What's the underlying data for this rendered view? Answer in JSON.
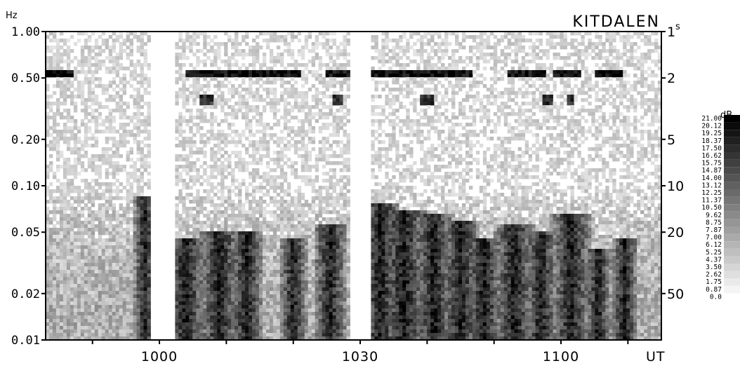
{
  "chart_data": {
    "type": "heatmap",
    "title": "KITDALEN",
    "left_axis_unit": "Hz",
    "right_axis_unit": "s",
    "x_axis_unit": "UT",
    "x_ticks": [
      {
        "label": "1000",
        "minute": 0
      },
      {
        "label": "1030",
        "minute": 30
      },
      {
        "label": "1100",
        "minute": 60
      }
    ],
    "x_range_minutes_rel_1000": [
      -17,
      75
    ],
    "y_scale": "log",
    "y_range_hz": [
      0.01,
      1.0
    ],
    "y_ticks": [
      {
        "label": "1.00",
        "hz": 1.0
      },
      {
        "label": "0.50",
        "hz": 0.5
      },
      {
        "label": "0.20",
        "hz": 0.2
      },
      {
        "label": "0.10",
        "hz": 0.1
      },
      {
        "label": "0.05",
        "hz": 0.05
      },
      {
        "label": "0.02",
        "hz": 0.02
      },
      {
        "label": "0.01",
        "hz": 0.01
      }
    ],
    "period_ticks": [
      {
        "label": "1",
        "seconds": 1
      },
      {
        "label": "2",
        "seconds": 2
      },
      {
        "label": "5",
        "seconds": 5
      },
      {
        "label": "10",
        "seconds": 10
      },
      {
        "label": "20",
        "seconds": 20
      },
      {
        "label": "50",
        "seconds": 50
      }
    ],
    "colorbar": {
      "unit": "dB",
      "levels": [
        "21.00",
        "20.12",
        "19.25",
        "18.37",
        "17.50",
        "16.62",
        "15.75",
        "14.87",
        "14.00",
        "13.12",
        "12.25",
        "11.37",
        "10.50",
        "9.62",
        "8.75",
        "7.87",
        "7.00",
        "6.12",
        "5.25",
        "4.37",
        "3.50",
        "2.62",
        "1.75",
        "0.87",
        "0.0"
      ]
    },
    "features": {
      "band_hz": 0.55,
      "band_segments_min": [
        [
          -17,
          -13
        ],
        [
          4,
          21
        ],
        [
          25,
          47
        ],
        [
          52,
          58
        ],
        [
          59,
          63
        ],
        [
          65,
          69
        ]
      ],
      "second_band_hz": 0.37,
      "second_band_spots_min": [
        [
          6,
          8
        ],
        [
          26,
          27.5
        ],
        [
          39,
          41
        ],
        [
          57,
          59
        ],
        [
          61,
          62
        ]
      ],
      "quiet_gaps_min": [
        [
          -1.5,
          2.2
        ],
        [
          28.5,
          31.5
        ]
      ],
      "low_freq_bursts": [
        {
          "minute": -2.2,
          "top_hz": 0.085,
          "width": 1.6
        },
        {
          "minute": 4,
          "top_hz": 0.045,
          "width": 3
        },
        {
          "minute": 9,
          "top_hz": 0.05,
          "width": 3
        },
        {
          "minute": 13,
          "top_hz": 0.05,
          "width": 2.5
        },
        {
          "minute": 20,
          "top_hz": 0.045,
          "width": 2
        },
        {
          "minute": 25.5,
          "top_hz": 0.055,
          "width": 2.5
        },
        {
          "minute": 33,
          "top_hz": 0.075,
          "width": 3
        },
        {
          "minute": 36.5,
          "top_hz": 0.07,
          "width": 3.5
        },
        {
          "minute": 41,
          "top_hz": 0.065,
          "width": 3
        },
        {
          "minute": 45,
          "top_hz": 0.06,
          "width": 3
        },
        {
          "minute": 48.5,
          "top_hz": 0.045,
          "width": 3
        },
        {
          "minute": 53,
          "top_hz": 0.055,
          "width": 3
        },
        {
          "minute": 57,
          "top_hz": 0.05,
          "width": 2.5
        },
        {
          "minute": 61.5,
          "top_hz": 0.065,
          "width": 3
        },
        {
          "minute": 65.5,
          "top_hz": 0.04,
          "width": 2
        },
        {
          "minute": 69.5,
          "top_hz": 0.045,
          "width": 2
        }
      ]
    }
  }
}
